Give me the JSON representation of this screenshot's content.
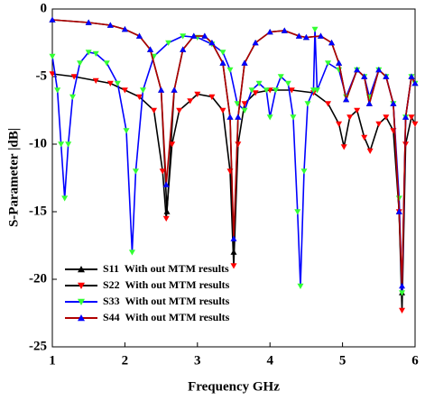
{
  "chart_data": {
    "type": "line",
    "xlabel": "Frequency GHz",
    "ylabel": "S-Parameter |dB|",
    "xlim": [
      1,
      6
    ],
    "ylim": [
      -25,
      0
    ],
    "xticks": [
      1,
      2,
      3,
      4,
      5,
      6
    ],
    "yticks": [
      -25,
      -20,
      -15,
      -10,
      -5,
      0
    ],
    "legend": "lower left",
    "series": [
      {
        "name": "S11  With out MTM results",
        "color": "#000000",
        "marker_color": "#000000",
        "marker": "triangle-up",
        "x": [
          1.0,
          1.5,
          1.8,
          2.0,
          2.2,
          2.35,
          2.5,
          2.58,
          2.68,
          2.8,
          2.95,
          3.1,
          3.2,
          3.35,
          3.45,
          3.5,
          3.56,
          3.65,
          3.8,
          4.0,
          4.2,
          4.4,
          4.5,
          4.7,
          4.85,
          4.95,
          5.05,
          5.2,
          5.3,
          5.37,
          5.5,
          5.6,
          5.7,
          5.78,
          5.82,
          5.87,
          5.95,
          6.0
        ],
        "values": [
          -0.8,
          -1.0,
          -1.2,
          -1.5,
          -2,
          -3,
          -6,
          -15,
          -6,
          -3,
          -2,
          -2,
          -2.5,
          -4,
          -8,
          -18,
          -8,
          -4,
          -2.5,
          -1.7,
          -1.6,
          -2,
          -2.1,
          -2,
          -2.5,
          -4,
          -6.7,
          -4.5,
          -5,
          -7,
          -4.5,
          -5,
          -7,
          -15,
          -21,
          -8,
          -5,
          -5.5
        ]
      },
      {
        "name": "S22  With out MTM results",
        "color": "#000000",
        "marker_color": "#ff0000",
        "marker": "triangle-down",
        "x": [
          1.0,
          1.3,
          1.6,
          1.8,
          2.0,
          2.2,
          2.4,
          2.52,
          2.57,
          2.65,
          2.75,
          2.9,
          3.0,
          3.2,
          3.35,
          3.45,
          3.5,
          3.56,
          3.65,
          3.8,
          4.0,
          4.3,
          4.6,
          4.8,
          4.95,
          5.02,
          5.1,
          5.2,
          5.3,
          5.38,
          5.5,
          5.6,
          5.7,
          5.78,
          5.82,
          5.87,
          5.95,
          6.0
        ],
        "values": [
          -4.8,
          -5,
          -5.3,
          -5.5,
          -6,
          -6.5,
          -7.5,
          -12,
          -15.5,
          -10,
          -7.5,
          -6.8,
          -6.3,
          -6.5,
          -7.5,
          -12,
          -19,
          -10,
          -7,
          -6.2,
          -6,
          -6,
          -6.2,
          -7,
          -8.5,
          -10.2,
          -8,
          -7.5,
          -9.5,
          -10.5,
          -8.5,
          -8,
          -9,
          -15,
          -22.3,
          -10,
          -8,
          -8.5
        ]
      },
      {
        "name": "S33  With out MTM results",
        "color": "#0000ff",
        "marker_color": "#33ff33",
        "marker": "triangle-down",
        "x": [
          1.0,
          1.07,
          1.12,
          1.17,
          1.22,
          1.28,
          1.38,
          1.5,
          1.6,
          1.75,
          1.9,
          2.02,
          2.1,
          2.15,
          2.25,
          2.4,
          2.6,
          2.8,
          3.0,
          3.2,
          3.35,
          3.45,
          3.55,
          3.65,
          3.75,
          3.85,
          3.95,
          4.0,
          4.08,
          4.15,
          4.25,
          4.32,
          4.38,
          4.42,
          4.47,
          4.52,
          4.6,
          4.62,
          4.65,
          4.8,
          4.95,
          5.05,
          5.2,
          5.3,
          5.37,
          5.5,
          5.6,
          5.7,
          5.78,
          5.82,
          5.87,
          5.95,
          6.0
        ],
        "values": [
          -3.5,
          -6,
          -10,
          -14,
          -10,
          -6.5,
          -4,
          -3.2,
          -3.3,
          -4,
          -5.5,
          -9,
          -18,
          -12,
          -6,
          -3.5,
          -2.5,
          -2,
          -2.1,
          -2.6,
          -3.2,
          -4.5,
          -7,
          -7.5,
          -6,
          -5.5,
          -6,
          -8,
          -6,
          -5,
          -5.5,
          -8,
          -15,
          -20.5,
          -12,
          -7,
          -6,
          -1.5,
          -6,
          -4,
          -4.5,
          -6.5,
          -4.5,
          -5,
          -6.5,
          -4.5,
          -5,
          -7,
          -14,
          -21,
          -8,
          -5,
          -5.5
        ]
      },
      {
        "name": "S44  With out MTM results",
        "color": "#b00000",
        "marker_color": "#0000ff",
        "marker": "triangle-up",
        "x": [
          1.0,
          1.5,
          1.8,
          2.0,
          2.2,
          2.35,
          2.5,
          2.57,
          2.68,
          2.8,
          2.95,
          3.1,
          3.2,
          3.35,
          3.45,
          3.5,
          3.56,
          3.65,
          3.8,
          4.0,
          4.2,
          4.4,
          4.5,
          4.7,
          4.85,
          4.95,
          5.05,
          5.2,
          5.3,
          5.37,
          5.5,
          5.6,
          5.7,
          5.78,
          5.82,
          5.87,
          5.95,
          6.0
        ],
        "values": [
          -0.8,
          -1.0,
          -1.2,
          -1.5,
          -2,
          -3,
          -6,
          -13,
          -6,
          -3,
          -2,
          -2,
          -2.5,
          -4,
          -8,
          -17,
          -8,
          -4,
          -2.5,
          -1.7,
          -1.6,
          -2,
          -2.1,
          -2,
          -2.5,
          -4,
          -6.7,
          -4.5,
          -5,
          -7,
          -4.5,
          -5,
          -7,
          -15,
          -20.5,
          -8,
          -5,
          -5.5
        ]
      }
    ]
  }
}
